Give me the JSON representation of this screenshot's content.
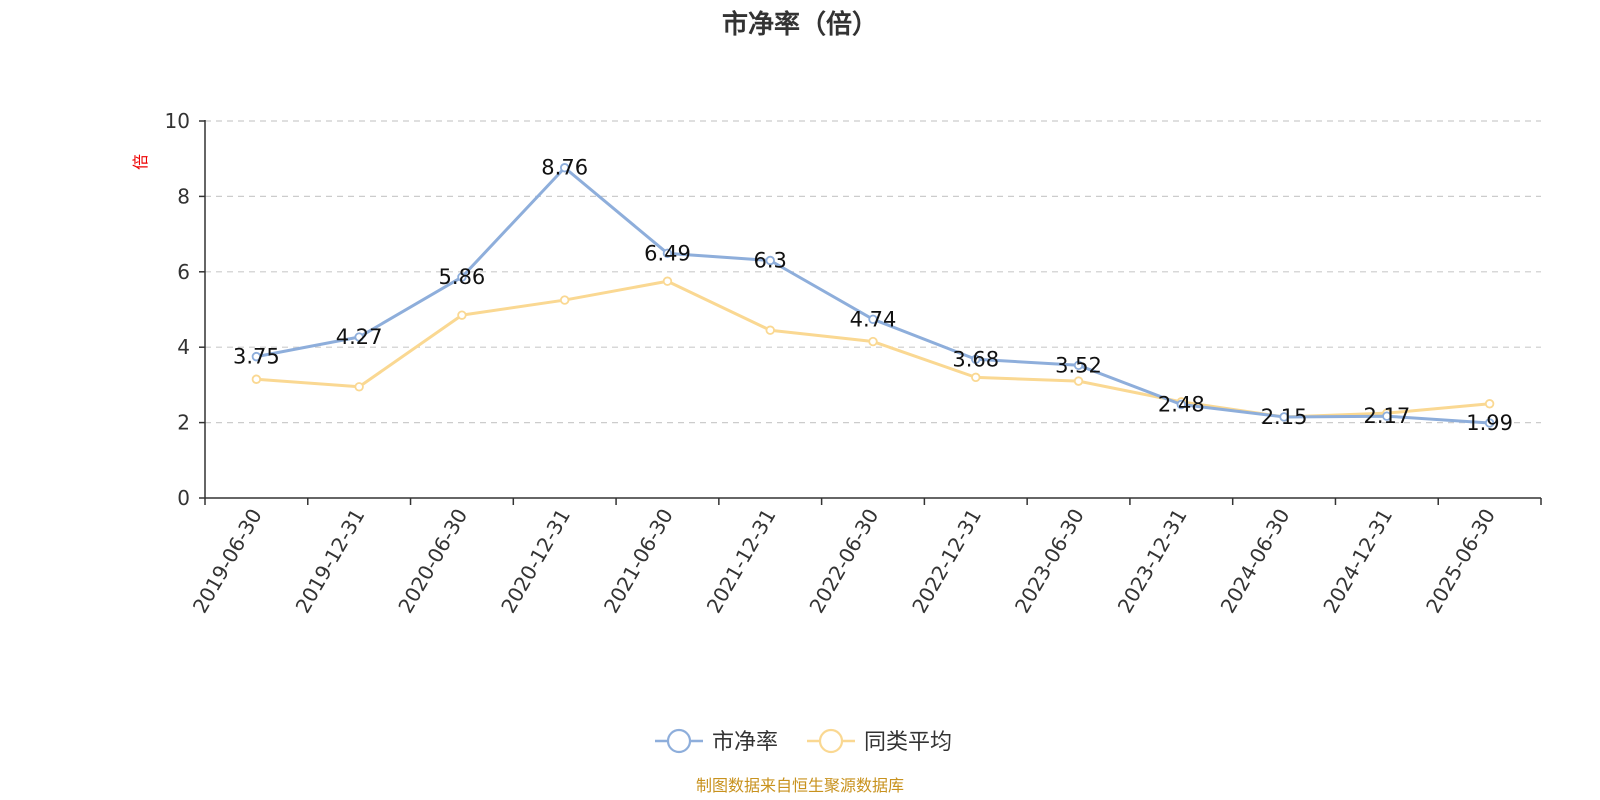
{
  "chart_data": {
    "type": "line",
    "title": "市净率（倍）",
    "ylabel": "倍",
    "ylim": [
      0,
      10
    ],
    "yticks": [
      0,
      2,
      4,
      6,
      8,
      10
    ],
    "grid": "horizontal-dashed",
    "legend_position": "bottom-center",
    "categories": [
      "2019-06-30",
      "2019-12-31",
      "2020-06-30",
      "2020-12-31",
      "2021-06-30",
      "2021-12-31",
      "2022-06-30",
      "2022-12-31",
      "2023-06-30",
      "2023-12-31",
      "2024-06-30",
      "2024-12-31",
      "2025-06-30"
    ],
    "series": [
      {
        "name": "市净率",
        "color": "#8eaedb",
        "values": [
          3.75,
          4.27,
          5.86,
          8.76,
          6.49,
          6.3,
          4.74,
          3.68,
          3.52,
          2.48,
          2.15,
          2.17,
          1.99
        ],
        "labels": [
          "3.75",
          "4.27",
          "5.86",
          "8.76",
          "6.49",
          "6.3",
          "4.74",
          "3.68",
          "3.52",
          "2.48",
          "2.15",
          "2.17",
          "1.99"
        ]
      },
      {
        "name": "同类平均",
        "color": "#fad892",
        "values": [
          3.15,
          2.95,
          4.85,
          5.25,
          5.75,
          4.45,
          4.15,
          3.2,
          3.1,
          2.55,
          2.15,
          2.25,
          2.5
        ]
      }
    ]
  },
  "footer": {
    "source": "制图数据来自恒生聚源数据库"
  }
}
